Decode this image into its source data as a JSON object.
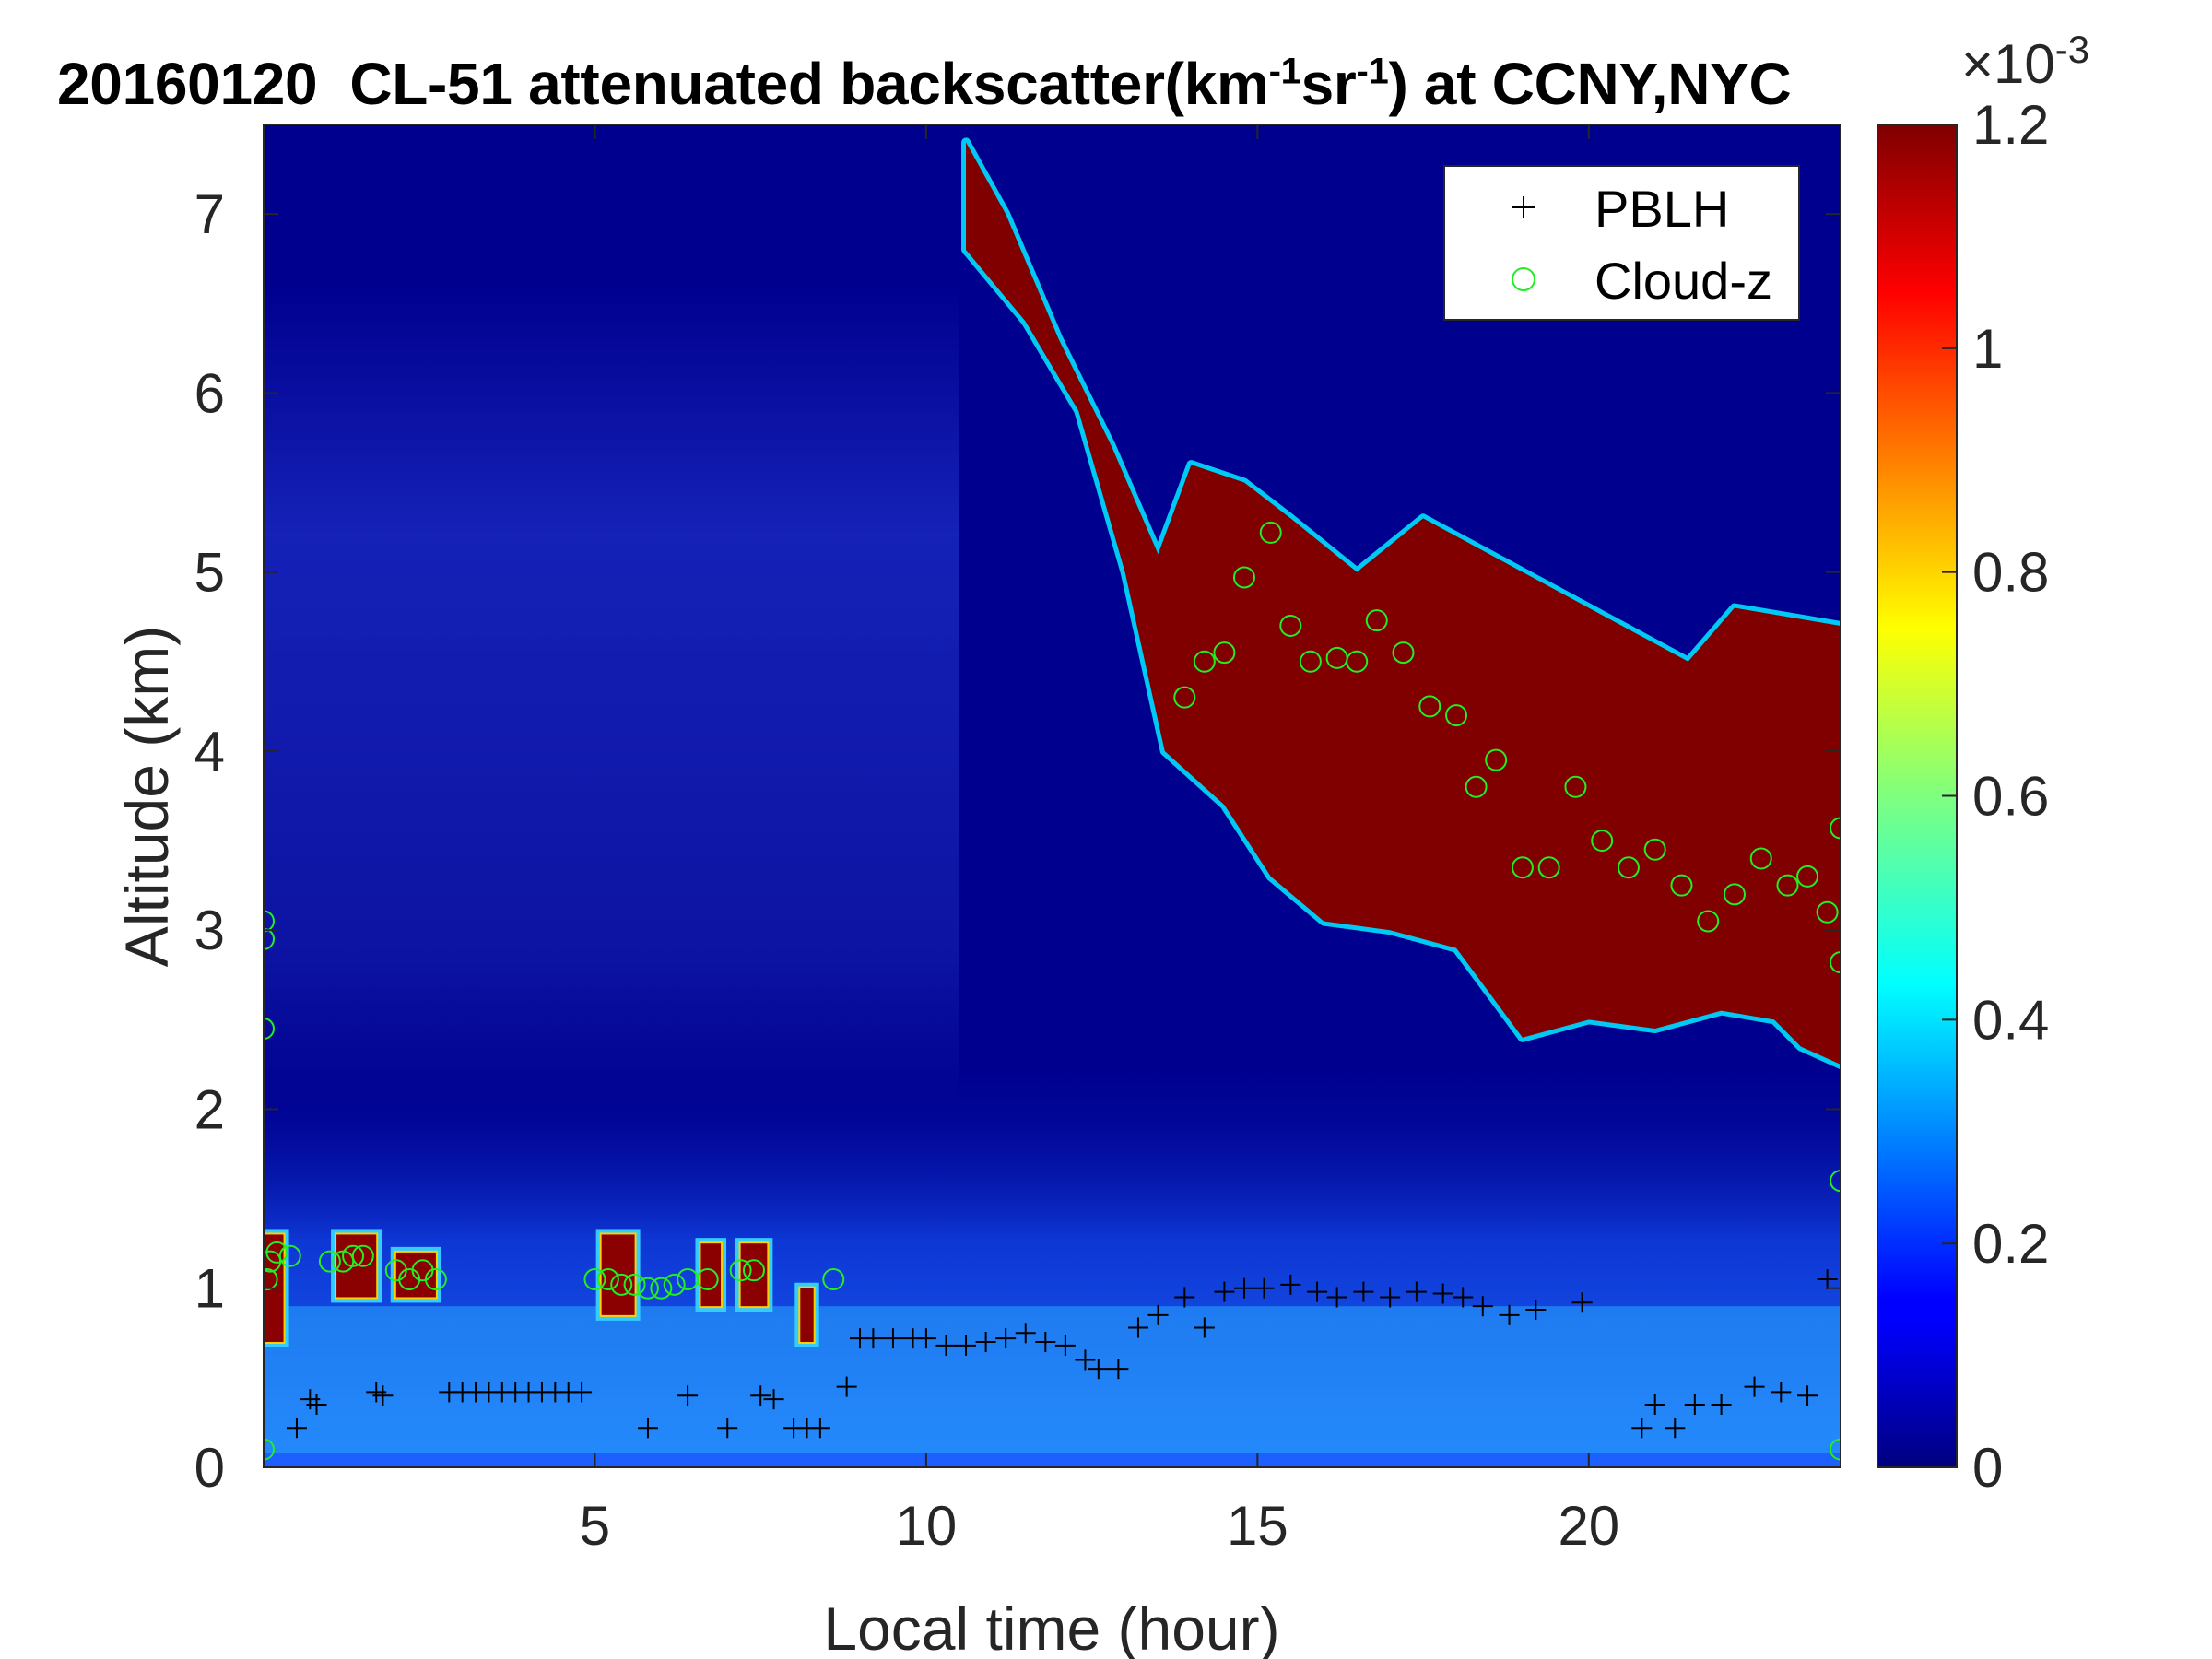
{
  "title": {
    "date": "20160120",
    "instrument": "CL-51 attenuated backscatter(km",
    "unit_exp1": "-1",
    "unit_mid": "sr",
    "unit_exp2": "-1",
    "suffix": ") at CCNY,NYC"
  },
  "colorbar": {
    "multiplier_base": "×10",
    "multiplier_exp": "-3",
    "ticks": [
      "0",
      "0.2",
      "0.4",
      "0.6",
      "0.8",
      "1",
      "1.2"
    ],
    "tick_values": [
      0,
      0.2,
      0.4,
      0.6,
      0.8,
      1.0,
      1.2
    ],
    "range": [
      0,
      1.2
    ],
    "colormap": "jet"
  },
  "chart_data": {
    "type": "heatmap",
    "title": "20160120  CL-51 attenuated backscatter(km-1sr-1) at CCNY,NYC",
    "xlabel": "Local time (hour)",
    "ylabel": "Altitude (km)",
    "xlim": [
      0,
      23.8
    ],
    "ylim": [
      0,
      7.5
    ],
    "x_ticks": [
      5,
      10,
      15,
      20
    ],
    "x_tick_labels": [
      "5",
      "10",
      "15",
      "20"
    ],
    "y_ticks": [
      0,
      1,
      2,
      3,
      4,
      5,
      6,
      7
    ],
    "y_tick_labels": [
      "0",
      "1",
      "2",
      "3",
      "4",
      "5",
      "6",
      "7"
    ],
    "legend": {
      "placement": "top-right",
      "entries": [
        {
          "label": "PBLH",
          "marker": "plus",
          "color": "#000000"
        },
        {
          "label": "Cloud-z",
          "marker": "circle",
          "color": "#22ee22"
        }
      ]
    },
    "cloud_deck": {
      "description_units": "hour, km",
      "top": [
        [
          10.6,
          7.4
        ],
        [
          11.2,
          7.0
        ],
        [
          12.0,
          6.3
        ],
        [
          12.8,
          5.7
        ],
        [
          13.5,
          5.1
        ],
        [
          14.0,
          5.6
        ],
        [
          14.8,
          5.5
        ],
        [
          15.5,
          5.3
        ],
        [
          16.5,
          5.0
        ],
        [
          17.5,
          5.3
        ],
        [
          18.5,
          5.1
        ],
        [
          19.5,
          4.9
        ],
        [
          20.5,
          4.7
        ],
        [
          21.5,
          4.5
        ],
        [
          22.2,
          4.8
        ],
        [
          23.0,
          4.75
        ],
        [
          23.8,
          4.7
        ]
      ],
      "bottom": [
        [
          10.6,
          6.8
        ],
        [
          11.5,
          6.4
        ],
        [
          12.3,
          5.9
        ],
        [
          13.0,
          5.0
        ],
        [
          13.6,
          4.0
        ],
        [
          14.5,
          3.7
        ],
        [
          15.2,
          3.3
        ],
        [
          16.0,
          3.05
        ],
        [
          17.0,
          3.0
        ],
        [
          18.0,
          2.9
        ],
        [
          19.0,
          2.4
        ],
        [
          20.0,
          2.5
        ],
        [
          21.0,
          2.45
        ],
        [
          22.0,
          2.55
        ],
        [
          22.8,
          2.5
        ],
        [
          23.2,
          2.35
        ],
        [
          23.8,
          2.25
        ]
      ]
    },
    "low_cloud_patches": [
      {
        "x0": 0.0,
        "x1": 0.3,
        "y0": 0.7,
        "y1": 1.3
      },
      {
        "x0": 1.1,
        "x1": 1.7,
        "y0": 0.95,
        "y1": 1.3
      },
      {
        "x0": 2.0,
        "x1": 2.6,
        "y0": 0.95,
        "y1": 1.2
      },
      {
        "x0": 5.1,
        "x1": 5.6,
        "y0": 0.85,
        "y1": 1.3
      },
      {
        "x0": 6.6,
        "x1": 6.9,
        "y0": 0.9,
        "y1": 1.25
      },
      {
        "x0": 7.2,
        "x1": 7.6,
        "y0": 0.9,
        "y1": 1.25
      },
      {
        "x0": 8.1,
        "x1": 8.3,
        "y0": 0.7,
        "y1": 1.0
      }
    ],
    "series": [
      {
        "name": "PBLH",
        "marker": "plus",
        "x": [
          0.5,
          0.7,
          0.8,
          1.7,
          1.8,
          2.8,
          3.0,
          3.2,
          3.4,
          3.6,
          3.8,
          4.0,
          4.2,
          4.4,
          4.6,
          4.8,
          5.8,
          6.4,
          7.0,
          7.5,
          7.7,
          8.0,
          8.2,
          8.4,
          8.8,
          9.0,
          9.2,
          9.5,
          9.8,
          10.0,
          10.3,
          10.6,
          10.9,
          11.2,
          11.5,
          11.8,
          12.1,
          12.4,
          12.6,
          12.9,
          13.2,
          13.5,
          13.9,
          14.2,
          14.5,
          14.8,
          15.1,
          15.5,
          15.9,
          16.2,
          16.6,
          17.0,
          17.4,
          17.8,
          18.1,
          18.4,
          18.8,
          19.2,
          19.9,
          20.8,
          21.0,
          21.3,
          21.6,
          22.0,
          22.5,
          22.9,
          23.3,
          23.6
        ],
        "y": [
          0.22,
          0.38,
          0.35,
          0.42,
          0.4,
          0.42,
          0.42,
          0.42,
          0.42,
          0.42,
          0.42,
          0.42,
          0.42,
          0.42,
          0.42,
          0.42,
          0.22,
          0.4,
          0.22,
          0.4,
          0.38,
          0.22,
          0.22,
          0.22,
          0.45,
          0.72,
          0.72,
          0.72,
          0.72,
          0.72,
          0.68,
          0.68,
          0.7,
          0.72,
          0.75,
          0.7,
          0.68,
          0.6,
          0.55,
          0.55,
          0.78,
          0.85,
          0.95,
          0.78,
          0.98,
          1.0,
          1.0,
          1.02,
          0.98,
          0.95,
          0.98,
          0.95,
          0.98,
          0.97,
          0.95,
          0.9,
          0.85,
          0.88,
          0.92,
          0.22,
          0.35,
          0.22,
          0.35,
          0.35,
          0.45,
          0.42,
          0.4,
          1.05
        ],
        "color": "#000000"
      },
      {
        "name": "Cloud-z",
        "marker": "circle",
        "x": [
          0.0,
          0.0,
          0.0,
          0.0,
          0.05,
          0.1,
          0.2,
          0.4,
          1.0,
          1.2,
          1.35,
          1.5,
          2.0,
          2.2,
          2.4,
          2.6,
          5.0,
          5.2,
          5.4,
          5.6,
          5.8,
          6.0,
          6.2,
          6.4,
          6.7,
          7.2,
          7.4,
          8.6,
          13.9,
          14.2,
          14.5,
          14.8,
          15.2,
          15.5,
          15.8,
          16.2,
          16.5,
          16.8,
          17.2,
          17.6,
          18.0,
          18.3,
          18.6,
          19.0,
          19.4,
          19.8,
          20.2,
          20.6,
          21.0,
          21.4,
          21.8,
          22.2,
          22.6,
          23.0,
          23.3,
          23.6,
          23.8,
          23.8,
          23.8,
          23.8
        ],
        "y": [
          0.1,
          2.45,
          2.95,
          3.05,
          1.05,
          1.15,
          1.2,
          1.18,
          1.15,
          1.15,
          1.18,
          1.18,
          1.1,
          1.05,
          1.1,
          1.05,
          1.05,
          1.05,
          1.02,
          1.02,
          1.0,
          1.0,
          1.02,
          1.05,
          1.05,
          1.1,
          1.1,
          1.05,
          4.3,
          4.5,
          4.55,
          4.97,
          5.22,
          4.7,
          4.5,
          4.52,
          4.5,
          4.73,
          4.55,
          4.25,
          4.2,
          3.8,
          3.95,
          3.35,
          3.35,
          3.8,
          3.5,
          3.35,
          3.45,
          3.25,
          3.05,
          3.2,
          3.4,
          3.25,
          3.3,
          3.1,
          3.57,
          2.82,
          1.6,
          0.1
        ],
        "color": "#22ee22"
      }
    ]
  }
}
